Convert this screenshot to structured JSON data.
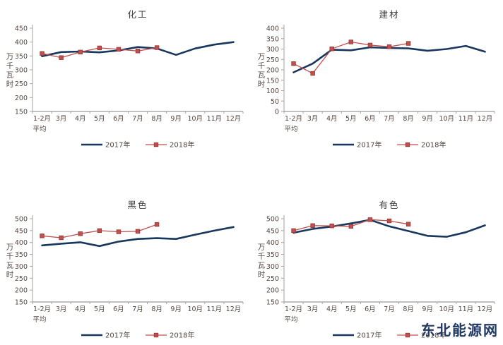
{
  "watermark": {
    "text": "东北能源网",
    "color": "#1f3864"
  },
  "colors": {
    "series_2017": "#17375e",
    "series_2018": "#c0504d",
    "marker_border": "#943634",
    "axis_line": "#a6a6a6",
    "x_axis_line": "#808080",
    "tick_text": "#544741",
    "title_text": "#3f3f3f"
  },
  "chart_data": [
    {
      "type": "line",
      "id": "chemical",
      "title": "化工",
      "ylabel": "万千瓦时",
      "ylim": [
        150,
        450
      ],
      "ytick_step": 50,
      "grid": false,
      "legend_position": "bottom",
      "categories": [
        "1-2月",
        "3月",
        "4月",
        "5月",
        "6月",
        "7月",
        "8月",
        "9月",
        "10月",
        "11月",
        "12月"
      ],
      "first_category_second_line": "平均",
      "series": [
        {
          "name": "2017年",
          "color": "#17375e",
          "marker": "none",
          "values": [
            349,
            364,
            366,
            363,
            370,
            382,
            377,
            354,
            377,
            391,
            400
          ]
        },
        {
          "name": "2018年",
          "color": "#c0504d",
          "marker": "square",
          "values": [
            359,
            344,
            364,
            379,
            374,
            368,
            380
          ]
        }
      ]
    },
    {
      "type": "line",
      "id": "building-materials",
      "title": "建材",
      "ylabel": "万千瓦时",
      "ylim": [
        0,
        400
      ],
      "ytick_step": 50,
      "grid": false,
      "legend_position": "bottom",
      "categories": [
        "1-2月",
        "3月",
        "4月",
        "5月",
        "6月",
        "7月",
        "8月",
        "9月",
        "10月",
        "11月",
        "12月"
      ],
      "first_category_second_line": "平均",
      "series": [
        {
          "name": "2017年",
          "color": "#17375e",
          "marker": "none",
          "values": [
            188,
            230,
            297,
            294,
            308,
            305,
            303,
            292,
            300,
            315,
            287
          ]
        },
        {
          "name": "2018年",
          "color": "#c0504d",
          "marker": "square",
          "values": [
            230,
            183,
            301,
            334,
            319,
            311,
            327
          ]
        }
      ]
    },
    {
      "type": "line",
      "id": "ferrous",
      "title": "黑色",
      "ylabel": "万千瓦时",
      "ylim": [
        150,
        500
      ],
      "ytick_step": 50,
      "grid": false,
      "legend_position": "bottom",
      "categories": [
        "1-2月",
        "3月",
        "4月",
        "5月",
        "6月",
        "7月",
        "8月",
        "9月",
        "10月",
        "11月",
        "12月"
      ],
      "first_category_second_line": "平均",
      "series": [
        {
          "name": "2017年",
          "color": "#17375e",
          "marker": "none",
          "values": [
            388,
            395,
            401,
            385,
            404,
            415,
            418,
            415,
            433,
            450,
            465
          ]
        },
        {
          "name": "2018年",
          "color": "#c0504d",
          "marker": "square",
          "values": [
            428,
            420,
            437,
            450,
            445,
            447,
            476
          ]
        }
      ]
    },
    {
      "type": "line",
      "id": "non-ferrous",
      "title": "有色",
      "ylabel": "万千瓦时",
      "ylim": [
        150,
        500
      ],
      "ytick_step": 50,
      "grid": false,
      "legend_position": "bottom",
      "categories": [
        "1-2月",
        "3月",
        "4月",
        "5月",
        "6月",
        "7月",
        "8月",
        "9月",
        "10月",
        "11月",
        "12月"
      ],
      "first_category_second_line": "平均",
      "series": [
        {
          "name": "2017年",
          "color": "#17375e",
          "marker": "none",
          "values": [
            441,
            457,
            467,
            480,
            495,
            468,
            448,
            428,
            424,
            443,
            472
          ]
        },
        {
          "name": "2018年",
          "color": "#c0504d",
          "marker": "square",
          "values": [
            450,
            471,
            470,
            468,
            496,
            491,
            477
          ]
        }
      ]
    }
  ]
}
